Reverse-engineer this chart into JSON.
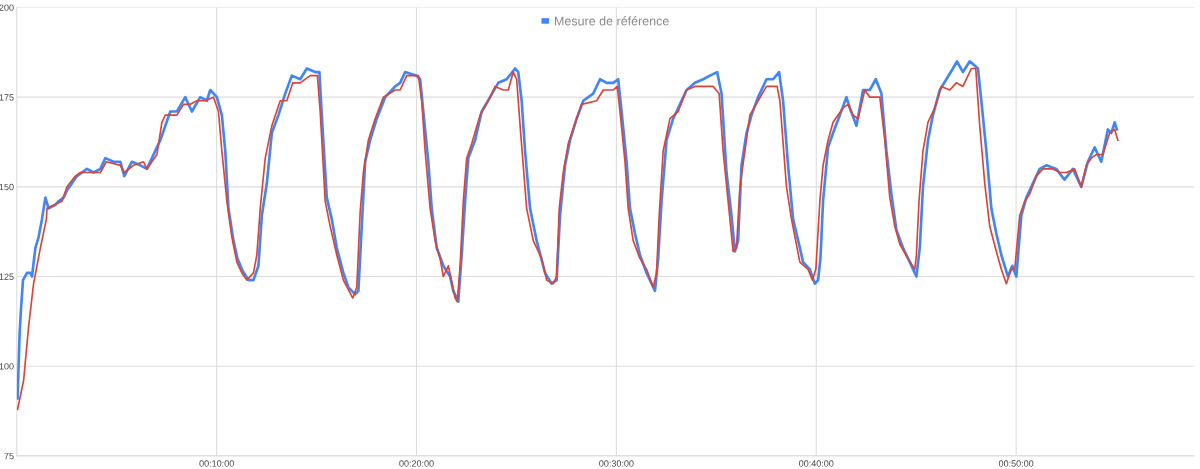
{
  "chart_data": {
    "type": "line",
    "xlim": [
      0,
      58.9
    ],
    "ylim": [
      75,
      200
    ],
    "xticks": [
      {
        "value": 10,
        "label": "00:10:00"
      },
      {
        "value": 20,
        "label": "00:20:00"
      },
      {
        "value": 30,
        "label": "00:30:00"
      },
      {
        "value": 40,
        "label": "00:40:00"
      },
      {
        "value": 50,
        "label": "00:50:00"
      }
    ],
    "yticks": [
      75,
      100,
      125,
      150,
      175,
      200
    ],
    "grid": true,
    "legend": "top",
    "marker": "none",
    "line_style": "solid",
    "series": [
      {
        "name": "Mesure de référence",
        "color": "#4285f4",
        "x": [
          0.04,
          0.14,
          0.21,
          0.31,
          0.51,
          0.68,
          0.76,
          0.93,
          1.09,
          1.26,
          1.43,
          1.59,
          1.93,
          2.09,
          2.34,
          2.51,
          2.76,
          3.01,
          3.51,
          3.84,
          4.18,
          4.43,
          4.84,
          5.18,
          5.38,
          5.76,
          6.18,
          6.51,
          6.76,
          7.01,
          7.18,
          7.43,
          7.68,
          8.01,
          8.43,
          8.76,
          9.18,
          9.51,
          9.68,
          10.01,
          10.26,
          10.43,
          10.59,
          10.84,
          11.04,
          11.26,
          11.59,
          11.84,
          12.09,
          12.26,
          12.51,
          12.76,
          13.09,
          13.43,
          13.76,
          14.18,
          14.51,
          14.93,
          15.14,
          15.26,
          15.51,
          15.76,
          16.01,
          16.34,
          16.59,
          16.93,
          17.09,
          17.26,
          17.43,
          17.68,
          18.01,
          18.43,
          18.93,
          19.18,
          19.43,
          20.01,
          20.18,
          20.34,
          20.59,
          20.76,
          21.01,
          21.34,
          21.68,
          21.84,
          22.09,
          22.26,
          22.43,
          22.59,
          22.93,
          23.26,
          23.68,
          24.09,
          24.51,
          24.93,
          25.09,
          25.26,
          25.43,
          25.68,
          26.01,
          26.43,
          26.76,
          27.01,
          27.18,
          27.43,
          27.68,
          28.01,
          28.34,
          28.84,
          29.18,
          29.51,
          29.84,
          30.09,
          30.26,
          30.51,
          30.68,
          30.93,
          31.18,
          31.51,
          31.93,
          32.09,
          32.26,
          32.51,
          32.84,
          33.18,
          33.51,
          33.93,
          34.34,
          34.68,
          35.04,
          35.26,
          35.51,
          35.76,
          35.93,
          36.09,
          36.26,
          36.51,
          36.76,
          37.09,
          37.51,
          37.84,
          38.14,
          38.34,
          38.59,
          38.84,
          39.18,
          39.34,
          39.68,
          39.93,
          40.09,
          40.21,
          40.34,
          40.59,
          40.84,
          41.18,
          41.51,
          41.68,
          42.01,
          42.34,
          42.68,
          42.98,
          43.26,
          43.51,
          43.76,
          44.01,
          44.34,
          44.68,
          45.01,
          45.18,
          45.34,
          45.59,
          45.84,
          46.18,
          46.51,
          46.84,
          47.04,
          47.34,
          47.68,
          48.09,
          48.26,
          48.51,
          48.76,
          49.01,
          49.26,
          49.59,
          49.81,
          50.01,
          50.26,
          50.51,
          50.84,
          51.18,
          51.51,
          52.01,
          52.42,
          52.84,
          53.26,
          53.59,
          53.93,
          54.26,
          54.59,
          54.76,
          54.93,
          55.04
        ],
        "values": [
          91,
          109,
          116,
          124,
          126,
          126,
          125,
          133,
          136,
          141,
          147,
          144,
          145,
          146,
          147,
          149,
          151,
          153,
          155,
          154,
          155,
          158,
          157,
          157,
          153,
          157,
          156,
          155,
          158,
          161,
          163,
          167,
          171,
          171,
          175,
          171,
          175,
          174,
          177,
          175,
          170,
          160,
          144,
          135,
          130,
          127,
          124,
          124,
          128,
          142,
          151,
          165,
          170,
          176,
          181,
          180,
          183,
          182,
          182,
          170,
          147,
          141,
          133,
          126,
          122,
          120,
          121,
          139,
          157,
          163,
          169,
          175,
          178,
          179,
          182,
          181,
          180,
          171,
          157,
          144,
          133,
          128,
          125,
          121,
          118,
          131,
          146,
          158,
          163,
          171,
          175,
          179,
          180,
          183,
          182,
          174,
          160,
          144,
          135,
          126,
          123,
          124,
          142,
          156,
          163,
          169,
          174,
          176,
          180,
          179,
          179,
          180,
          171,
          157,
          144,
          137,
          131,
          126,
          121,
          130,
          146,
          163,
          169,
          173,
          177,
          179,
          180,
          181,
          182,
          176,
          154,
          142,
          132,
          135,
          156,
          165,
          170,
          175,
          180,
          180,
          182,
          174,
          156,
          141,
          133,
          129,
          127,
          123,
          124,
          130,
          146,
          161,
          165,
          170,
          175,
          172,
          167,
          177,
          177,
          180,
          176,
          160,
          148,
          138,
          133,
          129,
          125,
          133,
          150,
          163,
          170,
          177,
          180,
          183,
          185,
          182,
          185,
          183,
          174,
          160,
          144,
          137,
          131,
          125,
          128,
          125,
          142,
          147,
          151,
          155,
          156,
          155,
          152,
          155,
          150,
          157,
          161,
          157,
          166,
          165,
          168,
          166
        ]
      },
      {
        "color": "#db4437",
        "x": [
          0.04,
          0.34,
          0.59,
          0.84,
          1.18,
          1.48,
          1.51,
          2.26,
          2.51,
          2.93,
          3.18,
          4.18,
          4.48,
          5.18,
          5.38,
          5.84,
          6.34,
          6.51,
          7.01,
          7.26,
          7.43,
          8.01,
          8.34,
          8.68,
          9.01,
          9.43,
          9.84,
          10.09,
          10.26,
          10.51,
          10.76,
          11.01,
          11.26,
          11.51,
          11.84,
          12.01,
          12.18,
          12.43,
          12.76,
          13.18,
          13.51,
          13.81,
          14.18,
          14.68,
          15.04,
          15.18,
          15.43,
          15.68,
          16.01,
          16.34,
          16.81,
          17.01,
          17.18,
          17.34,
          17.59,
          17.93,
          18.34,
          18.93,
          19.18,
          19.51,
          20.09,
          20.26,
          20.43,
          20.68,
          20.93,
          21.18,
          21.34,
          21.59,
          21.93,
          22.04,
          22.18,
          22.34,
          22.51,
          22.76,
          23.18,
          23.59,
          23.93,
          24.34,
          24.59,
          24.84,
          25.01,
          25.21,
          25.51,
          25.84,
          26.26,
          26.51,
          26.84,
          27.01,
          27.14,
          27.34,
          27.59,
          28.01,
          28.26,
          29.01,
          29.34,
          29.84,
          30.04,
          30.18,
          30.43,
          30.59,
          30.84,
          31.18,
          31.51,
          31.84,
          32.01,
          32.14,
          32.34,
          32.68,
          33.09,
          33.51,
          33.93,
          34.26,
          34.84,
          35.14,
          35.34,
          35.59,
          35.84,
          36.01,
          36.18,
          36.43,
          36.68,
          37.09,
          37.51,
          38.04,
          38.18,
          38.51,
          38.76,
          39.18,
          39.59,
          39.81,
          39.98,
          40.18,
          40.34,
          40.59,
          40.84,
          41.34,
          41.59,
          41.84,
          42.09,
          42.43,
          42.68,
          43.18,
          43.43,
          43.68,
          43.93,
          44.18,
          44.59,
          44.93,
          45.01,
          45.14,
          45.34,
          45.59,
          45.93,
          46.26,
          46.68,
          47.01,
          47.34,
          47.76,
          47.98,
          48.18,
          48.43,
          48.68,
          49.01,
          49.26,
          49.51,
          49.76,
          49.93,
          50.18,
          50.43,
          50.68,
          51.01,
          51.34,
          51.84,
          52.18,
          52.51,
          52.93,
          53.26,
          53.51,
          53.76,
          54.01,
          54.34,
          54.68,
          54.93,
          55.09
        ],
        "values": [
          88,
          96,
          111,
          123,
          133,
          141,
          144,
          146,
          150,
          153,
          154,
          154,
          157,
          156,
          154,
          156,
          157,
          155,
          159,
          168,
          170,
          170,
          173,
          173,
          174,
          174,
          175,
          171,
          160,
          146,
          136,
          129,
          126,
          124,
          126,
          131,
          144,
          158,
          167,
          174,
          174,
          179,
          179,
          181,
          181,
          171,
          146,
          139,
          131,
          124,
          119,
          122,
          143,
          154,
          163,
          169,
          175,
          177,
          177,
          181,
          181,
          174,
          160,
          144,
          135,
          130,
          125,
          128,
          119,
          118,
          128,
          146,
          158,
          162,
          170,
          174,
          178,
          177,
          177,
          182,
          180,
          165,
          144,
          135,
          130,
          124,
          123,
          125,
          144,
          154,
          162,
          169,
          173,
          174,
          177,
          177,
          178,
          171,
          157,
          144,
          135,
          130,
          127,
          122,
          126,
          142,
          160,
          169,
          171,
          177,
          178,
          178,
          178,
          176,
          160,
          146,
          132,
          133,
          150,
          160,
          170,
          174,
          178,
          178,
          174,
          150,
          141,
          129,
          127,
          124,
          127,
          146,
          156,
          163,
          168,
          172,
          173,
          170,
          169,
          177,
          175,
          175,
          163,
          147,
          139,
          134,
          130,
          127,
          131,
          146,
          160,
          168,
          172,
          178,
          177,
          179,
          178,
          183,
          183,
          167,
          151,
          139,
          132,
          127,
          123,
          127,
          127,
          142,
          146,
          148,
          153,
          155,
          155,
          154,
          154,
          155,
          150,
          156,
          158,
          159,
          159,
          165,
          166,
          163
        ]
      }
    ]
  }
}
